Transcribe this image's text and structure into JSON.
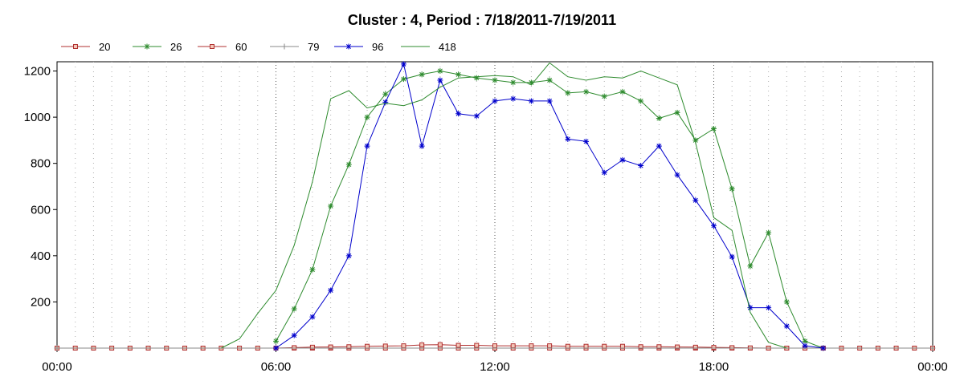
{
  "chart_data": {
    "type": "line",
    "title": "Cluster : 4, Period : 7/18/2011-7/19/2011",
    "xlabel": "",
    "ylabel": "",
    "x_tick_labels": [
      "00:00",
      "06:00",
      "12:00",
      "18:00",
      "00:00"
    ],
    "x_ticks_hours": [
      0,
      6,
      12,
      18,
      24
    ],
    "y_ticks": [
      200,
      400,
      600,
      800,
      1000,
      1200
    ],
    "xlim_hours": [
      0,
      24
    ],
    "ylim": [
      0,
      1240
    ],
    "grid": "vertical dotted",
    "legend_position": "top-left",
    "series": [
      {
        "name": "20",
        "color": "#b03030",
        "marker": "square",
        "points": [
          [
            0,
            0
          ],
          [
            0.5,
            0
          ],
          [
            1,
            0
          ],
          [
            1.5,
            0
          ],
          [
            2,
            0
          ],
          [
            2.5,
            0
          ],
          [
            3,
            0
          ],
          [
            3.5,
            0
          ],
          [
            4,
            0
          ],
          [
            4.5,
            0
          ],
          [
            5,
            0
          ],
          [
            5.5,
            0
          ],
          [
            6,
            0
          ],
          [
            6.5,
            0
          ],
          [
            7,
            0
          ],
          [
            7.5,
            0
          ],
          [
            8,
            0
          ],
          [
            8.5,
            0
          ],
          [
            9,
            0
          ],
          [
            9.5,
            0
          ],
          [
            10,
            0
          ],
          [
            10.5,
            0
          ],
          [
            11,
            0
          ],
          [
            11.5,
            0
          ],
          [
            12,
            0
          ],
          [
            12.5,
            0
          ],
          [
            13,
            0
          ],
          [
            13.5,
            0
          ],
          [
            14,
            0
          ],
          [
            14.5,
            0
          ],
          [
            15,
            0
          ],
          [
            15.5,
            0
          ],
          [
            16,
            0
          ],
          [
            16.5,
            0
          ],
          [
            17,
            0
          ],
          [
            17.5,
            0
          ],
          [
            18,
            0
          ],
          [
            18.5,
            0
          ],
          [
            19,
            0
          ],
          [
            19.5,
            0
          ],
          [
            20,
            0
          ],
          [
            20.5,
            0
          ],
          [
            21,
            0
          ],
          [
            21.5,
            0
          ],
          [
            22,
            0
          ],
          [
            22.5,
            0
          ],
          [
            23,
            0
          ],
          [
            23.5,
            0
          ],
          [
            24,
            0
          ]
        ]
      },
      {
        "name": "26",
        "color": "#2e8b2e",
        "marker": "star",
        "points": [
          [
            6,
            30
          ],
          [
            6.5,
            170
          ],
          [
            7,
            340
          ],
          [
            7.5,
            615
          ],
          [
            8,
            795
          ],
          [
            8.5,
            1000
          ],
          [
            9,
            1100
          ],
          [
            9.5,
            1165
          ],
          [
            10,
            1185
          ],
          [
            10.5,
            1200
          ],
          [
            11,
            1185
          ],
          [
            11.5,
            1170
          ],
          [
            12,
            1160
          ],
          [
            12.5,
            1150
          ],
          [
            13,
            1150
          ],
          [
            13.5,
            1160
          ],
          [
            14,
            1105
          ],
          [
            14.5,
            1110
          ],
          [
            15,
            1090
          ],
          [
            15.5,
            1110
          ],
          [
            16,
            1070
          ],
          [
            16.5,
            995
          ],
          [
            17,
            1020
          ],
          [
            17.5,
            900
          ],
          [
            18,
            950
          ],
          [
            18.5,
            690
          ],
          [
            19,
            355
          ],
          [
            19.5,
            500
          ],
          [
            20,
            200
          ],
          [
            20.5,
            30
          ],
          [
            21,
            0
          ]
        ]
      },
      {
        "name": "60",
        "color": "#b03030",
        "marker": "square",
        "points": [
          [
            6,
            0
          ],
          [
            6.5,
            2
          ],
          [
            7,
            4
          ],
          [
            7.5,
            5
          ],
          [
            8,
            6
          ],
          [
            8.5,
            8
          ],
          [
            9,
            9
          ],
          [
            9.5,
            10
          ],
          [
            10,
            14
          ],
          [
            10.5,
            15
          ],
          [
            11,
            12
          ],
          [
            11.5,
            12
          ],
          [
            12,
            10
          ],
          [
            12.5,
            10
          ],
          [
            13,
            10
          ],
          [
            13.5,
            10
          ],
          [
            14,
            8
          ],
          [
            14.5,
            8
          ],
          [
            15,
            8
          ],
          [
            15.5,
            8
          ],
          [
            16,
            6
          ],
          [
            16.5,
            6
          ],
          [
            17,
            5
          ],
          [
            17.5,
            4
          ],
          [
            18,
            3
          ],
          [
            18.5,
            2
          ],
          [
            19,
            1
          ],
          [
            19.5,
            0
          ],
          [
            20,
            0
          ],
          [
            20.5,
            0
          ],
          [
            21,
            0
          ]
        ]
      },
      {
        "name": "79",
        "color": "#888888",
        "marker": "plus",
        "points": [
          [
            0,
            0
          ],
          [
            24,
            0
          ]
        ]
      },
      {
        "name": "96",
        "color": "#0000cc",
        "marker": "star",
        "points": [
          [
            6,
            0
          ],
          [
            6.5,
            55
          ],
          [
            7,
            135
          ],
          [
            7.5,
            250
          ],
          [
            8,
            400
          ],
          [
            8.5,
            875
          ],
          [
            9,
            1065
          ],
          [
            9.5,
            1230
          ],
          [
            10,
            875
          ],
          [
            10.5,
            1160
          ],
          [
            11,
            1015
          ],
          [
            11.5,
            1005
          ],
          [
            12,
            1070
          ],
          [
            12.5,
            1080
          ],
          [
            13,
            1070
          ],
          [
            13.5,
            1070
          ],
          [
            14,
            905
          ],
          [
            14.5,
            895
          ],
          [
            15,
            760
          ],
          [
            15.5,
            815
          ],
          [
            16,
            790
          ],
          [
            16.5,
            875
          ],
          [
            17,
            750
          ],
          [
            17.5,
            640
          ],
          [
            18,
            530
          ],
          [
            18.5,
            395
          ],
          [
            19,
            175
          ],
          [
            19.5,
            175
          ],
          [
            20,
            95
          ],
          [
            20.5,
            10
          ],
          [
            21,
            0
          ]
        ]
      },
      {
        "name": "418",
        "color": "#2e8b2e",
        "marker": "none",
        "points": [
          [
            4.5,
            0
          ],
          [
            5,
            40
          ],
          [
            5.5,
            150
          ],
          [
            6,
            250
          ],
          [
            6.5,
            445
          ],
          [
            7,
            720
          ],
          [
            7.5,
            1080
          ],
          [
            8,
            1115
          ],
          [
            8.5,
            1040
          ],
          [
            9,
            1060
          ],
          [
            9.5,
            1050
          ],
          [
            10,
            1075
          ],
          [
            10.5,
            1130
          ],
          [
            11,
            1170
          ],
          [
            11.5,
            1175
          ],
          [
            12,
            1180
          ],
          [
            12.5,
            1175
          ],
          [
            13,
            1140
          ],
          [
            13.5,
            1235
          ],
          [
            14,
            1175
          ],
          [
            14.5,
            1160
          ],
          [
            15,
            1175
          ],
          [
            15.5,
            1170
          ],
          [
            16,
            1200
          ],
          [
            16.5,
            1170
          ],
          [
            17,
            1140
          ],
          [
            17.5,
            890
          ],
          [
            18,
            565
          ],
          [
            18.5,
            510
          ],
          [
            19,
            155
          ],
          [
            19.5,
            25
          ],
          [
            20,
            0
          ]
        ]
      }
    ]
  }
}
